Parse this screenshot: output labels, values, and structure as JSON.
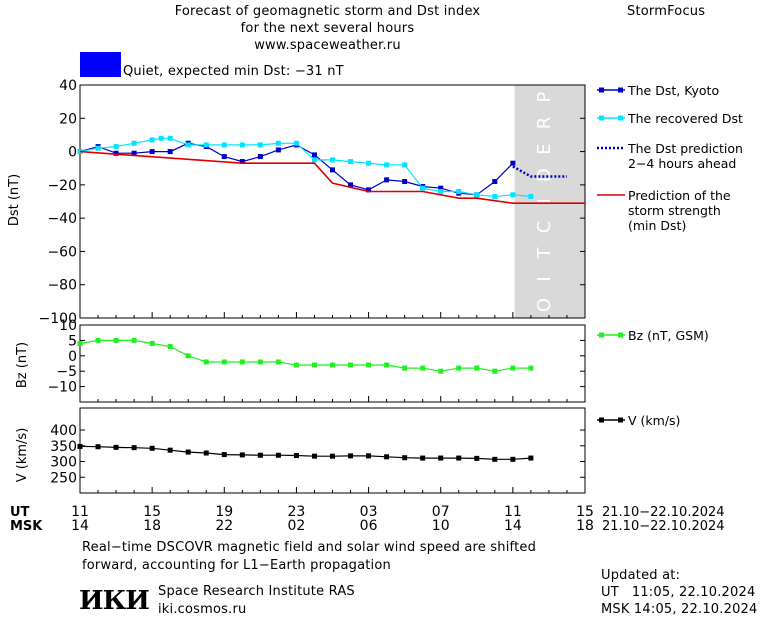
{
  "header": {
    "title_line1": "Forecast of geomagnetic storm and Dst index",
    "title_line2": "for the next several hours",
    "title_line3": "www.spaceweather.ru",
    "brand": "StormFocus"
  },
  "status": {
    "box_color": "#0000ff",
    "text": "Quiet, expected min Dst: −31 nT"
  },
  "chart_data": [
    {
      "type": "line",
      "ylabel": "Dst (nT)",
      "ylim": [
        -100,
        40
      ],
      "yticks": [
        "40",
        "20",
        "0",
        "−20",
        "−40",
        "−60",
        "−80",
        "−100"
      ],
      "prediction_label": "PREDICTION",
      "x_range_hours_ut": [
        11,
        39
      ],
      "series": [
        {
          "name": "The Dst, Kyoto",
          "color": "#0000cc",
          "x": [
            11,
            12,
            13,
            14,
            15,
            16,
            17,
            18,
            19,
            20,
            21,
            22,
            23,
            24,
            25,
            26,
            27,
            28,
            29,
            30,
            31,
            32,
            33,
            34,
            35
          ],
          "y": [
            0,
            3,
            -1,
            -1,
            0,
            0,
            5,
            3,
            -3,
            -6,
            -3,
            1,
            4,
            -2,
            -11,
            -20,
            -23,
            -17,
            -18,
            -21,
            -22,
            -25,
            -26,
            -18,
            -7
          ]
        },
        {
          "name": "The recovered Dst",
          "color": "#00e5ff",
          "x": [
            11,
            12,
            13,
            14,
            15,
            15.5,
            16,
            17,
            18,
            19,
            20,
            21,
            22,
            23,
            24,
            25,
            26,
            27,
            28,
            29,
            30,
            31,
            32,
            33,
            34,
            35,
            36
          ],
          "y": [
            0,
            2,
            3,
            5,
            7,
            8,
            8,
            4,
            4,
            4,
            4,
            4,
            5,
            5,
            -5,
            -5,
            -6,
            -7,
            -8,
            -8,
            -22,
            -24,
            -24,
            -26,
            -27,
            -26,
            -27
          ]
        },
        {
          "name": "The Dst prediction 2−4 hours ahead",
          "color": "#0000cc",
          "x": [
            35,
            36,
            37,
            38
          ],
          "y": [
            -9,
            -15,
            -15,
            -15
          ]
        },
        {
          "name": "Prediction of the storm strength (min Dst)",
          "color": "#dd0000",
          "x": [
            11,
            20,
            24,
            25,
            27,
            30,
            32,
            33,
            35,
            39
          ],
          "y": [
            0,
            -7,
            -7,
            -19,
            -24,
            -24,
            -28,
            -28,
            -31,
            -31
          ]
        }
      ]
    },
    {
      "type": "line",
      "ylabel": "Bz (nT)",
      "ylim": [
        -15,
        10
      ],
      "yticks": [
        "10",
        "5",
        "0",
        "−5",
        "−10"
      ],
      "series": [
        {
          "name": "Bz (nT, GSM)",
          "color": "#22ee22",
          "x": [
            11,
            12,
            13,
            14,
            15,
            16,
            17,
            18,
            19,
            20,
            21,
            22,
            23,
            24,
            25,
            26,
            27,
            28,
            29,
            30,
            31,
            32,
            33,
            34,
            35,
            36
          ],
          "y": [
            4,
            5,
            5,
            5,
            4,
            3,
            0,
            -2,
            -2,
            -2,
            -2,
            -2,
            -3,
            -3,
            -3,
            -3,
            -3,
            -3,
            -4,
            -4,
            -5,
            -4,
            -4,
            -5,
            -4,
            -4
          ]
        }
      ]
    },
    {
      "type": "line",
      "ylabel": "V (km/s)",
      "ylim": [
        200,
        470
      ],
      "yticks": [
        "400",
        "350",
        "300",
        "250"
      ],
      "series": [
        {
          "name": "V (km/s)",
          "color": "#000000",
          "x": [
            11,
            12,
            13,
            14,
            15,
            16,
            17,
            18,
            19,
            20,
            21,
            22,
            23,
            24,
            25,
            26,
            27,
            28,
            29,
            30,
            31,
            32,
            33,
            34,
            35,
            36
          ],
          "y": [
            348,
            347,
            345,
            344,
            342,
            336,
            330,
            327,
            322,
            321,
            320,
            320,
            319,
            317,
            317,
            318,
            318,
            315,
            312,
            311,
            311,
            311,
            310,
            307,
            307,
            311
          ]
        }
      ]
    }
  ],
  "xaxis": {
    "ut_label": "UT",
    "msk_label": "MSK",
    "ut_ticks": [
      "11",
      "15",
      "19",
      "23",
      "03",
      "07",
      "11",
      "15"
    ],
    "msk_ticks": [
      "14",
      "18",
      "22",
      "02",
      "06",
      "10",
      "14",
      "18"
    ],
    "date_range_ut": "21.10−22.10.2024",
    "date_range_msk": "21.10−22.10.2024"
  },
  "footer": {
    "note_line1": "Real−time DSCOVR magnetic field and solar wind speed are shifted",
    "note_line2": "forward, accounting for L1−Earth propagation",
    "logo": "ИКИ",
    "institute": "Space Research Institute RAS",
    "site": "iki.cosmos.ru",
    "updated_label": "Updated at:",
    "updated_ut": "UT   11:05, 22.10.2024",
    "updated_msk": "MSK 14:05, 22.10.2024"
  }
}
